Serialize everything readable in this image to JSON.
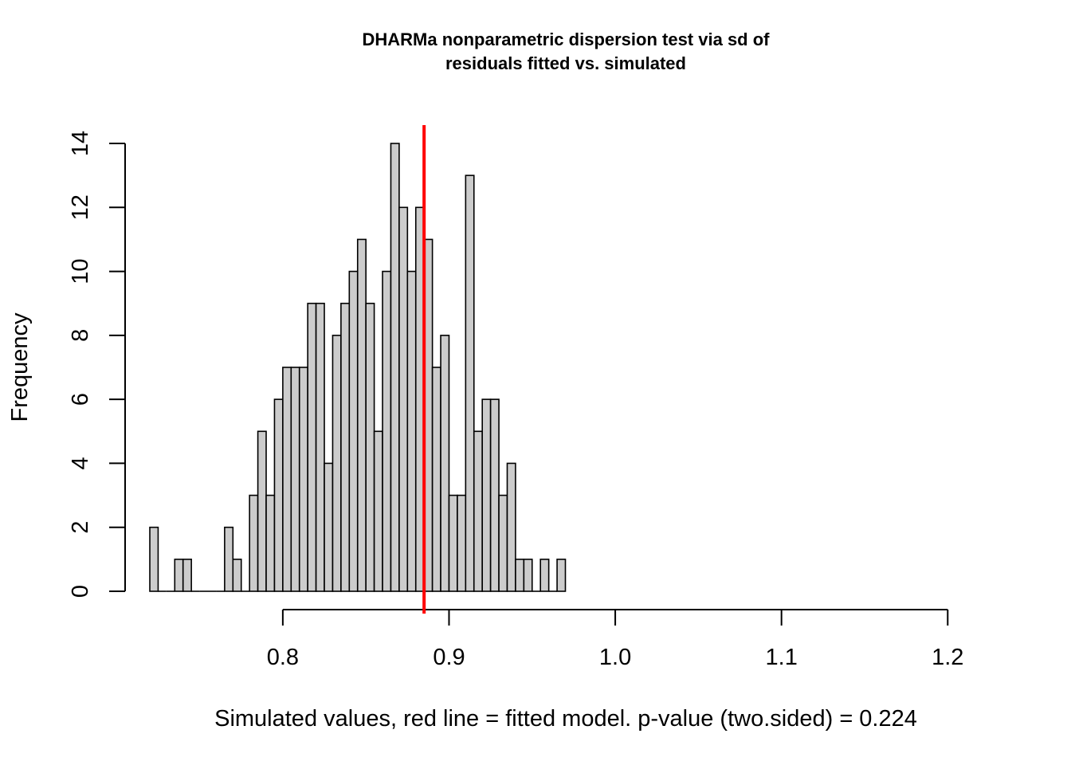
{
  "chart_data": {
    "type": "histogram",
    "title_lines": [
      "DHARMa nonparametric dispersion test via sd of",
      "residuals fitted vs. simulated"
    ],
    "xlabel": "Simulated values, red line = fitted model. p-value (two.sided) = 0.224",
    "ylabel": "Frequency",
    "bin_width": 0.005,
    "bin_start": 0.72,
    "counts": [
      2,
      0,
      0,
      1,
      1,
      0,
      0,
      0,
      0,
      2,
      1,
      0,
      3,
      5,
      3,
      6,
      7,
      7,
      7,
      9,
      9,
      4,
      8,
      9,
      10,
      11,
      9,
      5,
      10,
      14,
      12,
      10,
      12,
      11,
      7,
      8,
      3,
      3,
      13,
      5,
      6,
      6,
      3,
      4,
      1,
      1,
      0,
      1,
      0,
      1
    ],
    "xlim": [
      0.72,
      1.22
    ],
    "ylim": [
      0,
      14
    ],
    "xticks": [
      0.8,
      0.9,
      1.0,
      1.1,
      1.2
    ],
    "xtick_labels": [
      "0.8",
      "0.9",
      "1.0",
      "1.1",
      "1.2"
    ],
    "yticks": [
      0,
      2,
      4,
      6,
      8,
      10,
      12,
      14
    ],
    "ytick_labels": [
      "0",
      "2",
      "4",
      "6",
      "8",
      "10",
      "12",
      "14"
    ],
    "observed_value": 0.885,
    "bar_color": "#cccccc",
    "line_color": "#ff0000"
  }
}
